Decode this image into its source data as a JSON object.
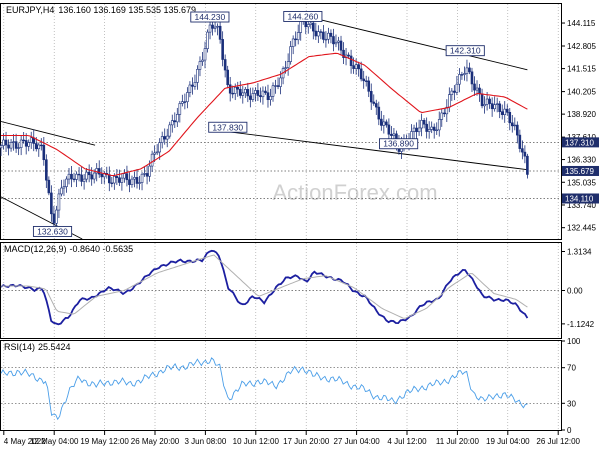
{
  "header": {
    "symbol": "EURJPY,H4",
    "ohlc": "136.160 136.169 135.535 135.679"
  },
  "watermark": "ActionForex.com",
  "colors": {
    "candle": "#1a2f7a",
    "ma": "#e0141b",
    "indicator": "#1c1fa0",
    "signal": "#b0b0b0",
    "rsi": "#4a9ee8",
    "price_tag_bg": "#1f2e6b",
    "grid": "#9a9a9a"
  },
  "chart_data": [
    {
      "type": "candlestick",
      "title": "EURJPY,H4",
      "ylim": [
        131.8,
        145.2
      ],
      "y_ticks": [
        "144.115",
        "142.805",
        "141.515",
        "140.205",
        "138.920",
        "137.610",
        "136.330",
        "135.035",
        "133.740",
        "132.445"
      ],
      "price_tags": [
        {
          "label": "137.310",
          "value": 137.31
        },
        {
          "label": "135.679",
          "value": 135.679
        },
        {
          "label": "134.110",
          "value": 134.11
        }
      ],
      "annotations": [
        {
          "label": "144.230",
          "x": 0.373,
          "value": 144.23
        },
        {
          "label": "144.260",
          "x": 0.539,
          "value": 144.26
        },
        {
          "label": "142.310",
          "x": 0.829,
          "value": 142.31
        },
        {
          "label": "137.830",
          "x": 0.405,
          "value": 137.83
        },
        {
          "label": "136.890",
          "x": 0.71,
          "value": 136.89
        },
        {
          "label": "132.630",
          "x": 0.092,
          "value": 132.63
        }
      ],
      "dotted_levels": [
        137.31,
        135.679,
        134.11
      ],
      "trendlines": [
        {
          "from": [
            0.0,
            138.5
          ],
          "to": [
            0.168,
            137.15
          ]
        },
        {
          "from": [
            0.0,
            134.2
          ],
          "to": [
            0.145,
            131.8
          ]
        },
        {
          "from": [
            0.398,
            137.95
          ],
          "to": [
            0.94,
            135.75
          ]
        },
        {
          "from": [
            0.532,
            144.6
          ],
          "to": [
            0.94,
            141.45
          ]
        }
      ],
      "close_anchors": [
        [
          0.0,
          137.0
        ],
        [
          0.02,
          137.2
        ],
        [
          0.04,
          137.4
        ],
        [
          0.06,
          137.1
        ],
        [
          0.075,
          136.9
        ],
        [
          0.085,
          134.5
        ],
        [
          0.092,
          132.7
        ],
        [
          0.11,
          134.8
        ],
        [
          0.13,
          135.5
        ],
        [
          0.16,
          135.3
        ],
        [
          0.18,
          135.6
        ],
        [
          0.2,
          135.2
        ],
        [
          0.23,
          135.1
        ],
        [
          0.26,
          135.5
        ],
        [
          0.28,
          137.0
        ],
        [
          0.3,
          138.2
        ],
        [
          0.32,
          139.2
        ],
        [
          0.34,
          140.5
        ],
        [
          0.36,
          142.3
        ],
        [
          0.375,
          144.0
        ],
        [
          0.39,
          143.5
        ],
        [
          0.405,
          140.5
        ],
        [
          0.42,
          140.2
        ],
        [
          0.44,
          139.9
        ],
        [
          0.46,
          140.3
        ],
        [
          0.48,
          139.8
        ],
        [
          0.5,
          141.0
        ],
        [
          0.52,
          143.0
        ],
        [
          0.54,
          144.1
        ],
        [
          0.56,
          143.8
        ],
        [
          0.58,
          143.3
        ],
        [
          0.6,
          142.9
        ],
        [
          0.62,
          142.2
        ],
        [
          0.64,
          141.2
        ],
        [
          0.66,
          140.0
        ],
        [
          0.68,
          138.5
        ],
        [
          0.7,
          137.5
        ],
        [
          0.71,
          137.0
        ],
        [
          0.73,
          137.8
        ],
        [
          0.75,
          138.2
        ],
        [
          0.77,
          138.0
        ],
        [
          0.79,
          139.0
        ],
        [
          0.81,
          140.3
        ],
        [
          0.83,
          141.8
        ],
        [
          0.845,
          140.5
        ],
        [
          0.86,
          139.4
        ],
        [
          0.88,
          139.6
        ],
        [
          0.9,
          139.0
        ],
        [
          0.92,
          137.8
        ],
        [
          0.935,
          136.5
        ],
        [
          0.94,
          135.7
        ]
      ],
      "ma_anchors": [
        [
          0.0,
          137.7
        ],
        [
          0.05,
          137.7
        ],
        [
          0.1,
          136.9
        ],
        [
          0.15,
          135.8
        ],
        [
          0.2,
          135.4
        ],
        [
          0.25,
          135.8
        ],
        [
          0.3,
          136.8
        ],
        [
          0.35,
          138.7
        ],
        [
          0.4,
          140.4
        ],
        [
          0.45,
          140.7
        ],
        [
          0.5,
          141.2
        ],
        [
          0.55,
          142.2
        ],
        [
          0.6,
          142.4
        ],
        [
          0.65,
          141.7
        ],
        [
          0.7,
          140.3
        ],
        [
          0.75,
          139.0
        ],
        [
          0.8,
          139.3
        ],
        [
          0.85,
          140.1
        ],
        [
          0.9,
          139.9
        ],
        [
          0.94,
          139.2
        ]
      ]
    },
    {
      "type": "line",
      "title": "MACD(12,26,9)",
      "values_label": "-0.8640 -0.5635",
      "ylim": [
        -1.6,
        1.6
      ],
      "y_ticks": [
        "1.3134",
        "0.00",
        "-1.1242"
      ],
      "zero_line": 0.0,
      "series": [
        {
          "name": "MACD",
          "anchors": [
            [
              0.0,
              0.1
            ],
            [
              0.03,
              0.2
            ],
            [
              0.06,
              0.0
            ],
            [
              0.075,
              0.1
            ],
            [
              0.09,
              -1.0
            ],
            [
              0.1,
              -1.2
            ],
            [
              0.12,
              -0.9
            ],
            [
              0.14,
              -0.3
            ],
            [
              0.16,
              -0.3
            ],
            [
              0.19,
              0.1
            ],
            [
              0.22,
              -0.1
            ],
            [
              0.25,
              0.3
            ],
            [
              0.28,
              0.8
            ],
            [
              0.32,
              1.0
            ],
            [
              0.36,
              1.0
            ],
            [
              0.375,
              1.4
            ],
            [
              0.39,
              1.2
            ],
            [
              0.405,
              0.1
            ],
            [
              0.43,
              -0.5
            ],
            [
              0.45,
              -0.2
            ],
            [
              0.47,
              -0.4
            ],
            [
              0.49,
              0.1
            ],
            [
              0.51,
              0.4
            ],
            [
              0.53,
              0.5
            ],
            [
              0.545,
              0.3
            ],
            [
              0.56,
              0.6
            ],
            [
              0.58,
              0.5
            ],
            [
              0.61,
              0.3
            ],
            [
              0.63,
              0.0
            ],
            [
              0.65,
              -0.2
            ],
            [
              0.67,
              -0.7
            ],
            [
              0.69,
              -1.0
            ],
            [
              0.71,
              -1.1
            ],
            [
              0.73,
              -0.9
            ],
            [
              0.75,
              -0.5
            ],
            [
              0.78,
              -0.3
            ],
            [
              0.8,
              0.3
            ],
            [
              0.82,
              0.6
            ],
            [
              0.83,
              0.7
            ],
            [
              0.845,
              0.3
            ],
            [
              0.86,
              -0.2
            ],
            [
              0.88,
              -0.3
            ],
            [
              0.9,
              -0.3
            ],
            [
              0.92,
              -0.5
            ],
            [
              0.94,
              -0.9
            ]
          ]
        },
        {
          "name": "Signal",
          "anchors": [
            [
              0.0,
              0.15
            ],
            [
              0.05,
              0.15
            ],
            [
              0.08,
              0.05
            ],
            [
              0.1,
              -0.7
            ],
            [
              0.13,
              -0.8
            ],
            [
              0.17,
              -0.2
            ],
            [
              0.22,
              0.0
            ],
            [
              0.28,
              0.6
            ],
            [
              0.33,
              0.9
            ],
            [
              0.38,
              1.2
            ],
            [
              0.42,
              0.5
            ],
            [
              0.46,
              -0.2
            ],
            [
              0.5,
              0.1
            ],
            [
              0.54,
              0.4
            ],
            [
              0.58,
              0.5
            ],
            [
              0.63,
              0.1
            ],
            [
              0.68,
              -0.6
            ],
            [
              0.72,
              -0.95
            ],
            [
              0.76,
              -0.6
            ],
            [
              0.8,
              0.1
            ],
            [
              0.84,
              0.6
            ],
            [
              0.88,
              -0.1
            ],
            [
              0.92,
              -0.3
            ],
            [
              0.94,
              -0.56
            ]
          ]
        }
      ]
    },
    {
      "type": "line",
      "title": "RSI(14)",
      "values_label": "25.5424",
      "ylim": [
        0,
        100
      ],
      "y_ticks": [
        "100",
        "70",
        "30",
        "0"
      ],
      "levels": [
        70,
        30
      ],
      "anchors": [
        [
          0.0,
          62
        ],
        [
          0.03,
          66
        ],
        [
          0.06,
          60
        ],
        [
          0.08,
          55
        ],
        [
          0.09,
          18
        ],
        [
          0.1,
          12
        ],
        [
          0.12,
          42
        ],
        [
          0.14,
          58
        ],
        [
          0.17,
          50
        ],
        [
          0.2,
          55
        ],
        [
          0.23,
          52
        ],
        [
          0.26,
          58
        ],
        [
          0.29,
          68
        ],
        [
          0.33,
          72
        ],
        [
          0.36,
          76
        ],
        [
          0.375,
          80
        ],
        [
          0.39,
          70
        ],
        [
          0.405,
          35
        ],
        [
          0.43,
          50
        ],
        [
          0.46,
          55
        ],
        [
          0.49,
          50
        ],
        [
          0.52,
          66
        ],
        [
          0.54,
          70
        ],
        [
          0.56,
          60
        ],
        [
          0.59,
          58
        ],
        [
          0.62,
          52
        ],
        [
          0.65,
          45
        ],
        [
          0.67,
          38
        ],
        [
          0.7,
          32
        ],
        [
          0.72,
          40
        ],
        [
          0.75,
          48
        ],
        [
          0.78,
          52
        ],
        [
          0.81,
          60
        ],
        [
          0.83,
          66
        ],
        [
          0.845,
          40
        ],
        [
          0.86,
          32
        ],
        [
          0.88,
          40
        ],
        [
          0.9,
          38
        ],
        [
          0.92,
          35
        ],
        [
          0.94,
          25.5
        ]
      ]
    }
  ],
  "x_axis": {
    "labels": [
      "4 May 2022",
      "12 May 04:00",
      "19 May 12:00",
      "26 May 20:00",
      "3 Jun 08:00",
      "10 Jun 12:00",
      "17 Jun 20:00",
      "27 Jun 04:00",
      "4 Jul 12:00",
      "11 Jul 20:00",
      "19 Jul 04:00",
      "26 Jul 12:00"
    ]
  }
}
